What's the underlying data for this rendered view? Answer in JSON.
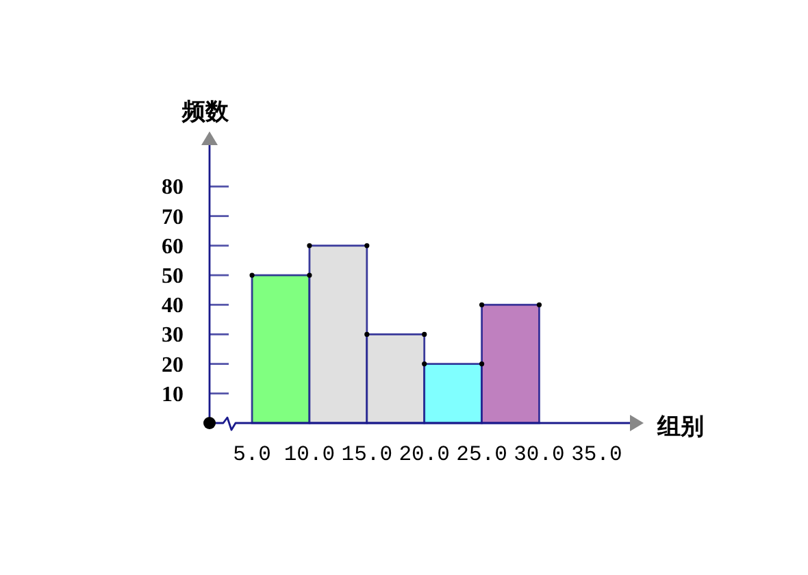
{
  "chart_data": {
    "type": "histogram",
    "xlabel": "组别",
    "ylabel": "频数",
    "bins": [
      5,
      10,
      15,
      20,
      25,
      30
    ],
    "values": [
      50,
      60,
      30,
      20,
      40
    ],
    "colors": [
      "#80ff80",
      "#e0e0e0",
      "#e0e0e0",
      "#80ffff",
      "#bf80bf"
    ],
    "xlim": [
      1.3,
      37.9
    ],
    "ylim": [
      0,
      94
    ],
    "xticks": [
      {
        "value": 5,
        "label": "5.0"
      },
      {
        "value": 10,
        "label": "10.0"
      },
      {
        "value": 15,
        "label": "15.0"
      },
      {
        "value": 20,
        "label": "20.0"
      },
      {
        "value": 25,
        "label": "25.0"
      },
      {
        "value": 30,
        "label": "30.0"
      },
      {
        "value": 35,
        "label": "35.0"
      }
    ],
    "yticks": [
      10,
      20,
      30,
      40,
      50,
      60,
      70,
      80
    ],
    "marker": "circle"
  }
}
